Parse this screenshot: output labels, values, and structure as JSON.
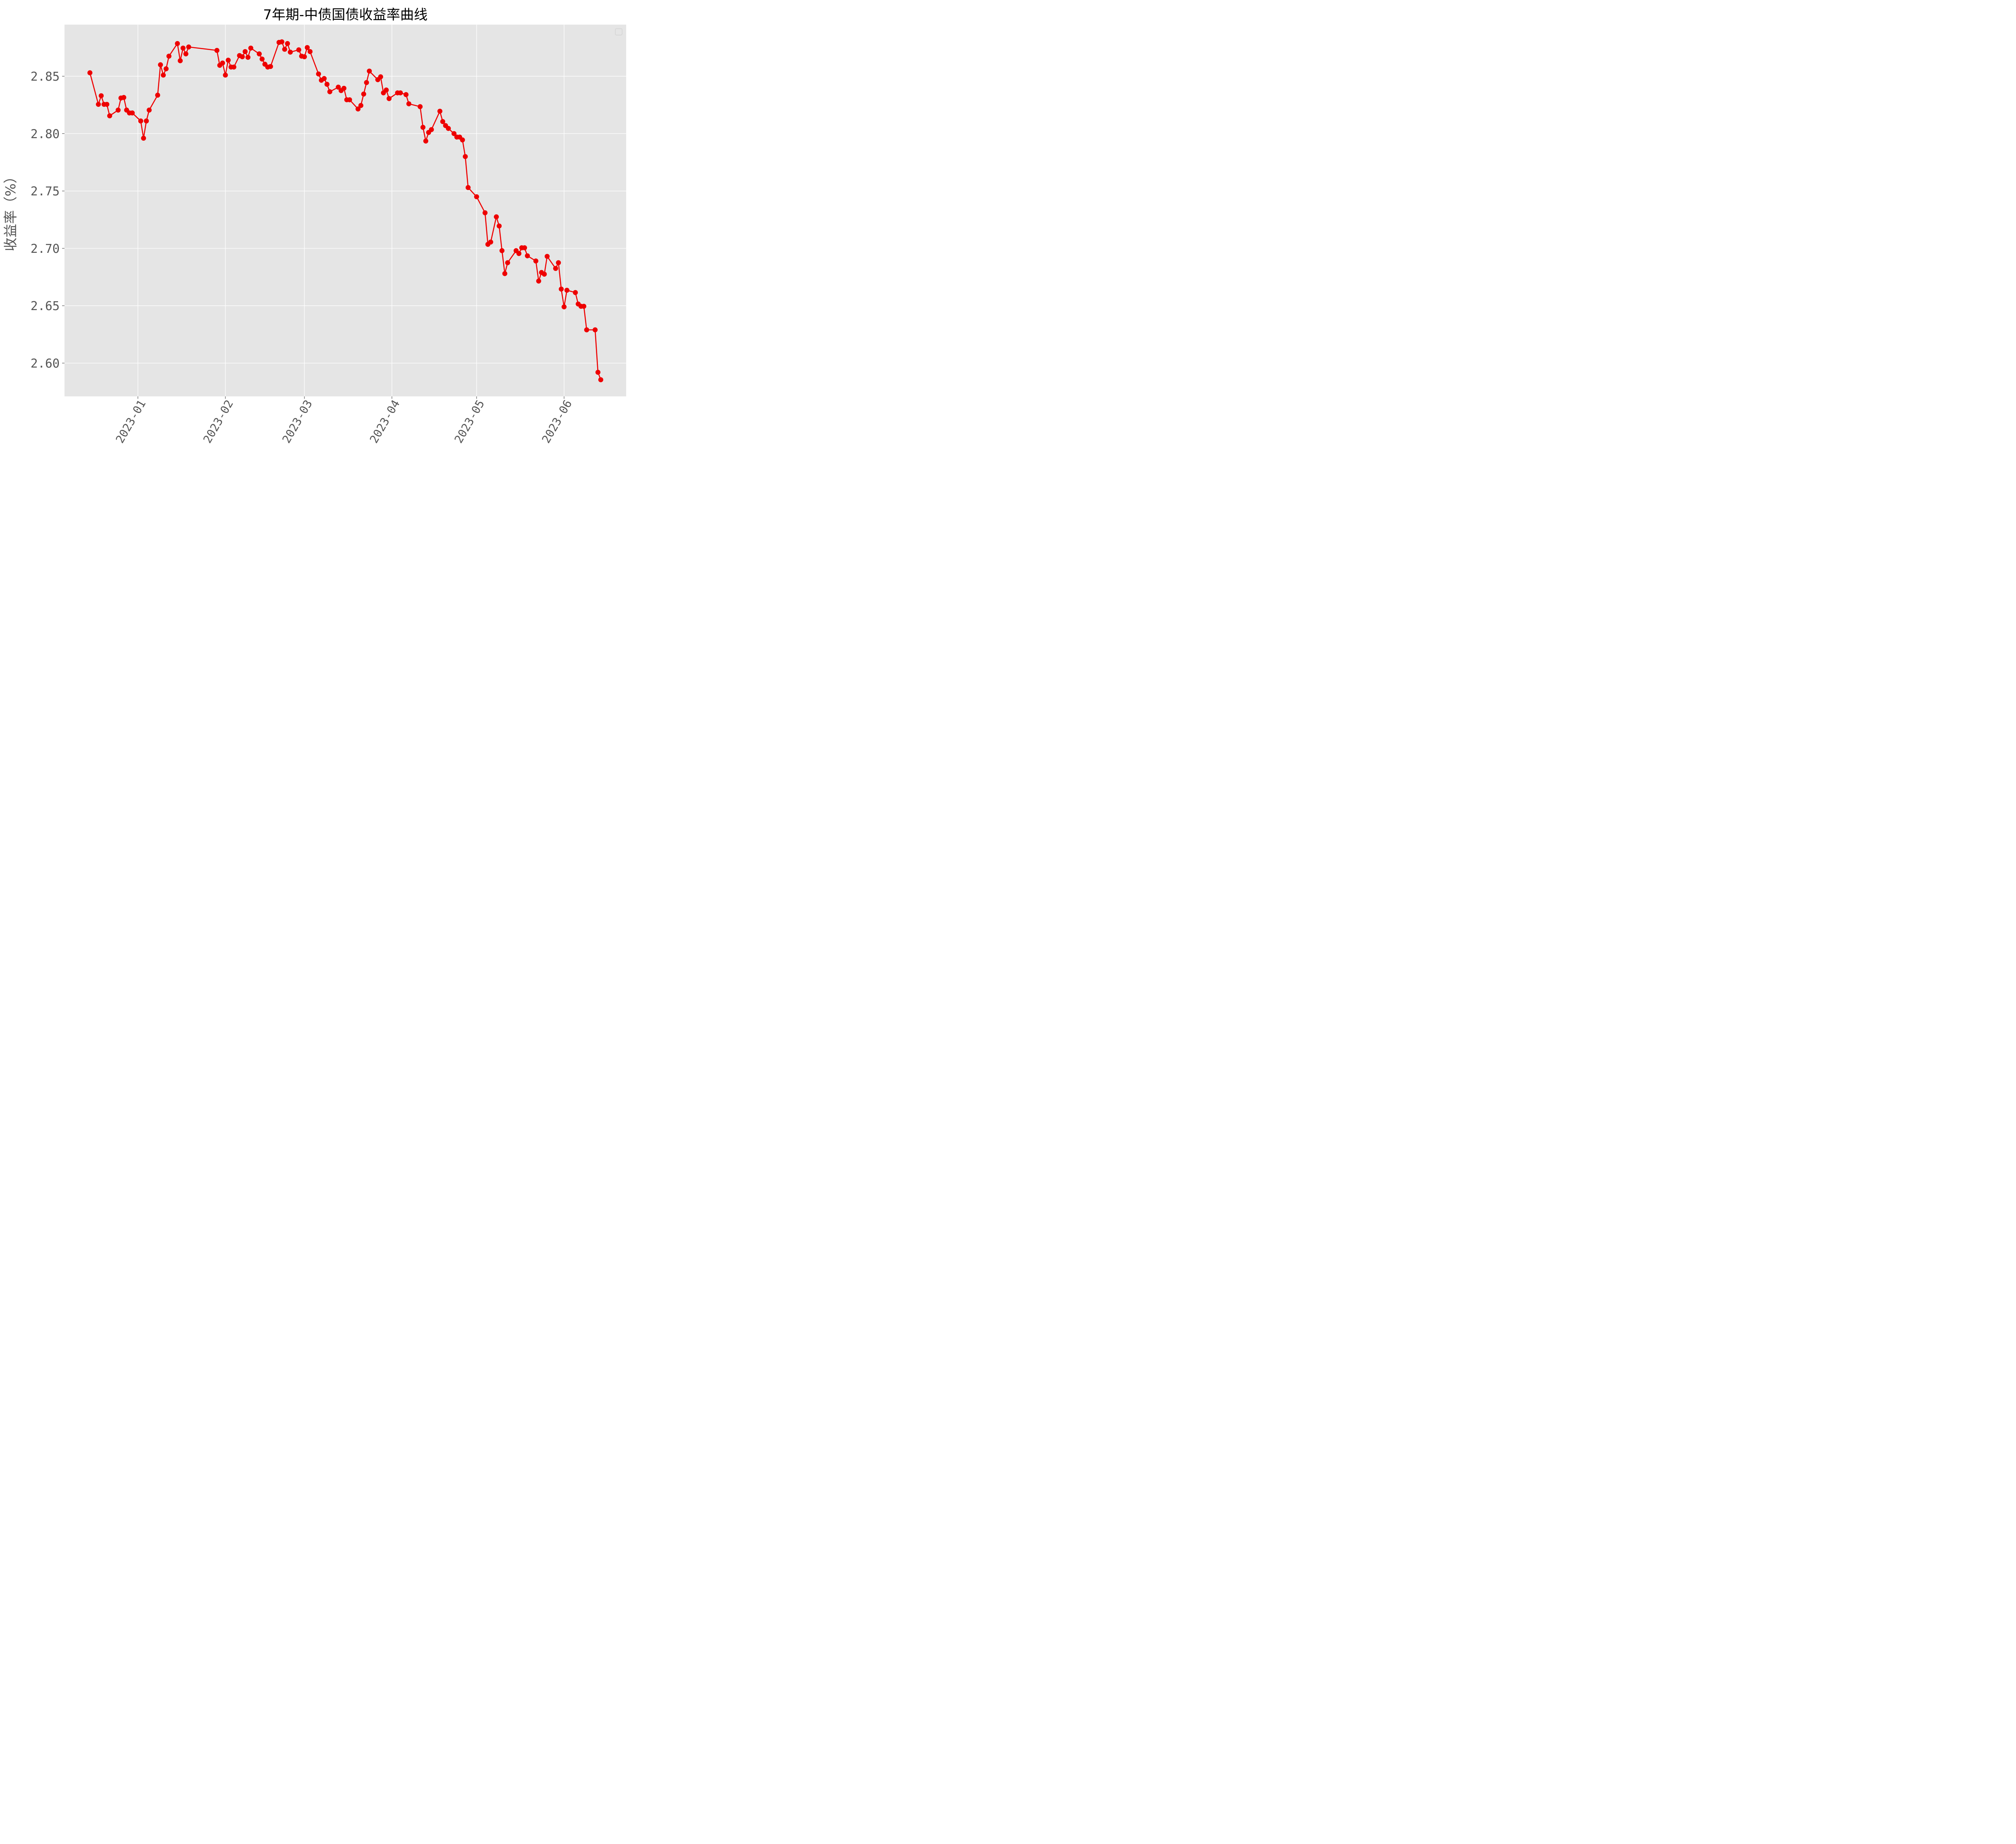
{
  "chart_data": {
    "type": "line",
    "title": "7年期-中债国债收益率曲线",
    "xlabel": "",
    "ylabel": "收益率（%）",
    "ylim": [
      2.571,
      2.895
    ],
    "xlim": [
      "2022-12-06",
      "2023-06-23"
    ],
    "y_ticks": [
      "2.60",
      "2.65",
      "2.70",
      "2.75",
      "2.80",
      "2.85"
    ],
    "x_ticks": [
      "2023-01",
      "2023-02",
      "2023-03",
      "2023-04",
      "2023-05",
      "2023-06"
    ],
    "grid": true,
    "legend": "top-right, empty",
    "colors": {
      "background": "#e5e5e5",
      "grid": "#ffffff",
      "series": "#ee0000"
    },
    "series": [
      {
        "marker": "circle",
        "x": [
          "2022-12-15",
          "2022-12-18",
          "2022-12-19",
          "2022-12-20",
          "2022-12-21",
          "2022-12-22",
          "2022-12-25",
          "2022-12-26",
          "2022-12-27",
          "2022-12-28",
          "2022-12-29",
          "2022-12-30",
          "2023-01-02",
          "2023-01-03",
          "2023-01-04",
          "2023-01-05",
          "2023-01-08",
          "2023-01-09",
          "2023-01-10",
          "2023-01-11",
          "2023-01-12",
          "2023-01-15",
          "2023-01-16",
          "2023-01-17",
          "2023-01-18",
          "2023-01-19",
          "2023-01-29",
          "2023-01-30",
          "2023-01-31",
          "2023-02-01",
          "2023-02-02",
          "2023-02-03",
          "2023-02-04",
          "2023-02-06",
          "2023-02-07",
          "2023-02-08",
          "2023-02-09",
          "2023-02-10",
          "2023-02-13",
          "2023-02-14",
          "2023-02-15",
          "2023-02-16",
          "2023-02-17",
          "2023-02-20",
          "2023-02-21",
          "2023-02-22",
          "2023-02-23",
          "2023-02-24",
          "2023-02-27",
          "2023-02-28",
          "2023-03-01",
          "2023-03-02",
          "2023-03-03",
          "2023-03-06",
          "2023-03-07",
          "2023-03-08",
          "2023-03-09",
          "2023-03-10",
          "2023-03-13",
          "2023-03-14",
          "2023-03-15",
          "2023-03-16",
          "2023-03-17",
          "2023-03-20",
          "2023-03-21",
          "2023-03-22",
          "2023-03-23",
          "2023-03-24",
          "2023-03-27",
          "2023-03-28",
          "2023-03-29",
          "2023-03-30",
          "2023-03-31",
          "2023-04-03",
          "2023-04-04",
          "2023-04-06",
          "2023-04-07",
          "2023-04-11",
          "2023-04-12",
          "2023-04-13",
          "2023-04-14",
          "2023-04-15",
          "2023-04-18",
          "2023-04-19",
          "2023-04-20",
          "2023-04-21",
          "2023-04-23",
          "2023-04-24",
          "2023-04-25",
          "2023-04-26",
          "2023-04-27",
          "2023-04-28",
          "2023-05-01",
          "2023-05-04",
          "2023-05-05",
          "2023-05-06",
          "2023-05-08",
          "2023-05-09",
          "2023-05-10",
          "2023-05-11",
          "2023-05-12",
          "2023-05-15",
          "2023-05-16",
          "2023-05-17",
          "2023-05-18",
          "2023-05-19",
          "2023-05-22",
          "2023-05-23",
          "2023-05-24",
          "2023-05-25",
          "2023-05-26",
          "2023-05-29",
          "2023-05-30",
          "2023-05-31",
          "2023-06-01",
          "2023-06-02",
          "2023-06-05",
          "2023-06-06",
          "2023-06-07",
          "2023-06-08",
          "2023-06-09",
          "2023-06-12",
          "2023-06-13",
          "2023-06-14"
        ],
        "y": [
          2.853,
          2.8255,
          2.833,
          2.8255,
          2.8255,
          2.8155,
          2.8205,
          2.831,
          2.8315,
          2.8205,
          2.818,
          2.818,
          2.811,
          2.796,
          2.811,
          2.8205,
          2.8335,
          2.86,
          2.851,
          2.8565,
          2.8675,
          2.8785,
          2.8635,
          2.8745,
          2.8695,
          2.8755,
          2.8725,
          2.8595,
          2.8615,
          2.851,
          2.864,
          2.858,
          2.858,
          2.868,
          2.867,
          2.8715,
          2.8665,
          2.8745,
          2.8695,
          2.865,
          2.8605,
          2.858,
          2.8585,
          2.8795,
          2.88,
          2.8735,
          2.8785,
          2.871,
          2.873,
          2.8675,
          2.867,
          2.875,
          2.8715,
          2.852,
          2.8465,
          2.848,
          2.843,
          2.8365,
          2.8405,
          2.8375,
          2.8395,
          2.8295,
          2.8295,
          2.8215,
          2.8245,
          2.8345,
          2.8445,
          2.8545,
          2.847,
          2.8495,
          2.8355,
          2.838,
          2.8305,
          2.8355,
          2.8355,
          2.834,
          2.826,
          2.8235,
          2.8055,
          2.7935,
          2.801,
          2.8035,
          2.8195,
          2.8105,
          2.807,
          2.8045,
          2.8,
          2.797,
          2.797,
          2.7945,
          2.78,
          2.753,
          2.745,
          2.731,
          2.7035,
          2.7055,
          2.7275,
          2.7195,
          2.698,
          2.678,
          2.6875,
          2.698,
          2.6955,
          2.7005,
          2.7005,
          2.6935,
          2.689,
          2.6715,
          2.679,
          2.6775,
          2.693,
          2.6825,
          2.6875,
          2.6645,
          2.649,
          2.6635,
          2.6615,
          2.6515,
          2.6495,
          2.6495,
          2.629,
          2.629,
          2.592,
          2.5855
        ]
      }
    ]
  }
}
